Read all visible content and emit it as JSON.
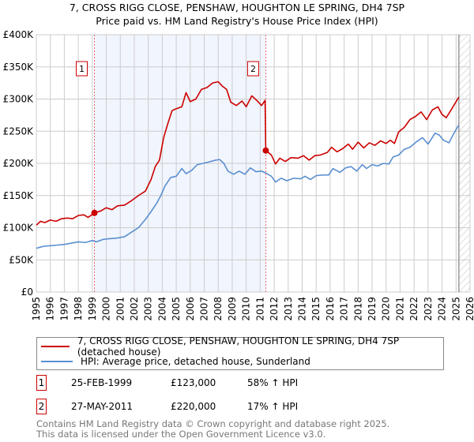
{
  "chart_data": {
    "type": "line",
    "title": "7, CROSS RIGG CLOSE, PENSHAW, HOUGHTON LE SPRING, DH4 7SP",
    "subtitle": "Price paid vs. HM Land Registry's House Price Index (HPI)",
    "xlim": [
      1995,
      2026
    ],
    "ylim": [
      0,
      400000
    ],
    "x_ticks": [
      "1995",
      "1996",
      "1997",
      "1998",
      "1999",
      "2000",
      "2001",
      "2002",
      "2003",
      "2004",
      "2005",
      "2006",
      "2007",
      "2008",
      "2009",
      "2010",
      "2011",
      "2012",
      "2013",
      "2014",
      "2015",
      "2016",
      "2017",
      "2018",
      "2019",
      "2020",
      "2021",
      "2022",
      "2023",
      "2024",
      "2025",
      "2026"
    ],
    "y_ticks": [
      {
        "v": 0,
        "label": "£0"
      },
      {
        "v": 50000,
        "label": "£50K"
      },
      {
        "v": 100000,
        "label": "£100K"
      },
      {
        "v": 150000,
        "label": "£150K"
      },
      {
        "v": 200000,
        "label": "£200K"
      },
      {
        "v": 250000,
        "label": "£250K"
      },
      {
        "v": 300000,
        "label": "£300K"
      },
      {
        "v": 350000,
        "label": "£350K"
      },
      {
        "v": 400000,
        "label": "£400K"
      }
    ],
    "grid": true,
    "shaded_ranges": [
      [
        1999.15,
        2011.4
      ]
    ],
    "forecast_hatch_from": 2025.2,
    "series": [
      {
        "name": "7, CROSS RIGG CLOSE, PENSHAW, HOUGHTON LE SPRING, DH4 7SP (detached house)",
        "color": "#cc0000",
        "points": [
          [
            1995,
            104000
          ],
          [
            1995.3,
            110000
          ],
          [
            1995.6,
            108000
          ],
          [
            1996,
            112000
          ],
          [
            1996.4,
            110000
          ],
          [
            1996.8,
            114000
          ],
          [
            1997.2,
            115000
          ],
          [
            1997.6,
            114000
          ],
          [
            1998,
            119000
          ],
          [
            1998.4,
            120000
          ],
          [
            1998.7,
            116000
          ],
          [
            1999.15,
            123000
          ],
          [
            1999.6,
            126000
          ],
          [
            2000,
            131000
          ],
          [
            2000.4,
            128000
          ],
          [
            2000.8,
            134000
          ],
          [
            2001.3,
            135000
          ],
          [
            2001.8,
            142000
          ],
          [
            2002.3,
            150000
          ],
          [
            2002.8,
            157000
          ],
          [
            2003.2,
            175000
          ],
          [
            2003.5,
            195000
          ],
          [
            2003.8,
            205000
          ],
          [
            2004.1,
            240000
          ],
          [
            2004.4,
            262000
          ],
          [
            2004.7,
            282000
          ],
          [
            2005,
            285000
          ],
          [
            2005.4,
            288000
          ],
          [
            2005.7,
            310000
          ],
          [
            2006,
            296000
          ],
          [
            2006.4,
            300000
          ],
          [
            2006.8,
            315000
          ],
          [
            2007.2,
            318000
          ],
          [
            2007.6,
            325000
          ],
          [
            2008,
            327000
          ],
          [
            2008.3,
            320000
          ],
          [
            2008.6,
            315000
          ],
          [
            2008.9,
            295000
          ],
          [
            2009.3,
            290000
          ],
          [
            2009.7,
            297000
          ],
          [
            2010,
            288000
          ],
          [
            2010.4,
            305000
          ],
          [
            2010.8,
            297000
          ],
          [
            2011.1,
            290000
          ],
          [
            2011.35,
            298000
          ],
          [
            2011.4,
            220000
          ],
          [
            2011.8,
            213000
          ],
          [
            2012.1,
            199000
          ],
          [
            2012.4,
            208000
          ],
          [
            2012.8,
            203000
          ],
          [
            2013.2,
            209000
          ],
          [
            2013.7,
            208000
          ],
          [
            2014.1,
            212000
          ],
          [
            2014.5,
            205000
          ],
          [
            2014.9,
            212000
          ],
          [
            2015.3,
            213000
          ],
          [
            2015.8,
            217000
          ],
          [
            2016.1,
            225000
          ],
          [
            2016.5,
            218000
          ],
          [
            2016.9,
            223000
          ],
          [
            2017.3,
            230000
          ],
          [
            2017.6,
            222000
          ],
          [
            2018,
            233000
          ],
          [
            2018.4,
            224000
          ],
          [
            2018.8,
            232000
          ],
          [
            2019.2,
            228000
          ],
          [
            2019.6,
            235000
          ],
          [
            2020,
            231000
          ],
          [
            2020.3,
            236000
          ],
          [
            2020.6,
            231000
          ],
          [
            2020.9,
            249000
          ],
          [
            2021.3,
            256000
          ],
          [
            2021.7,
            268000
          ],
          [
            2022.1,
            273000
          ],
          [
            2022.5,
            280000
          ],
          [
            2022.9,
            268000
          ],
          [
            2023.3,
            283000
          ],
          [
            2023.7,
            288000
          ],
          [
            2024,
            276000
          ],
          [
            2024.3,
            271000
          ],
          [
            2024.7,
            285000
          ],
          [
            2025.2,
            303000
          ]
        ]
      },
      {
        "name": "HPI: Average price, detached house, Sunderland",
        "color": "#5b8fd0",
        "points": [
          [
            1995,
            68000
          ],
          [
            1995.5,
            71000
          ],
          [
            1996,
            72000
          ],
          [
            1996.5,
            73000
          ],
          [
            1997,
            74000
          ],
          [
            1997.5,
            76000
          ],
          [
            1998,
            78000
          ],
          [
            1998.5,
            77000
          ],
          [
            1999,
            80000
          ],
          [
            1999.3,
            78000
          ],
          [
            1999.8,
            82000
          ],
          [
            2000.3,
            83000
          ],
          [
            2000.8,
            84000
          ],
          [
            2001.3,
            86000
          ],
          [
            2001.8,
            93000
          ],
          [
            2002.3,
            100000
          ],
          [
            2002.8,
            113000
          ],
          [
            2003.2,
            125000
          ],
          [
            2003.6,
            138000
          ],
          [
            2003.9,
            150000
          ],
          [
            2004.2,
            165000
          ],
          [
            2004.6,
            178000
          ],
          [
            2005,
            180000
          ],
          [
            2005.4,
            192000
          ],
          [
            2005.7,
            184000
          ],
          [
            2006.1,
            189000
          ],
          [
            2006.5,
            198000
          ],
          [
            2006.9,
            200000
          ],
          [
            2007.3,
            202000
          ],
          [
            2007.8,
            205000
          ],
          [
            2008.1,
            206000
          ],
          [
            2008.4,
            200000
          ],
          [
            2008.7,
            188000
          ],
          [
            2009.1,
            183000
          ],
          [
            2009.5,
            188000
          ],
          [
            2009.9,
            183000
          ],
          [
            2010.3,
            193000
          ],
          [
            2010.7,
            187000
          ],
          [
            2011.1,
            188000
          ],
          [
            2011.4,
            185000
          ],
          [
            2011.8,
            180000
          ],
          [
            2012.1,
            171000
          ],
          [
            2012.5,
            177000
          ],
          [
            2012.9,
            173000
          ],
          [
            2013.4,
            177000
          ],
          [
            2013.9,
            176000
          ],
          [
            2014.2,
            180000
          ],
          [
            2014.6,
            175000
          ],
          [
            2015,
            181000
          ],
          [
            2015.5,
            182000
          ],
          [
            2015.9,
            182000
          ],
          [
            2016.2,
            192000
          ],
          [
            2016.7,
            186000
          ],
          [
            2017.1,
            193000
          ],
          [
            2017.5,
            195000
          ],
          [
            2017.9,
            188000
          ],
          [
            2018.3,
            198000
          ],
          [
            2018.6,
            192000
          ],
          [
            2019,
            198000
          ],
          [
            2019.4,
            196000
          ],
          [
            2019.8,
            200000
          ],
          [
            2020.2,
            199000
          ],
          [
            2020.5,
            210000
          ],
          [
            2020.9,
            213000
          ],
          [
            2021.3,
            222000
          ],
          [
            2021.7,
            225000
          ],
          [
            2022.2,
            234000
          ],
          [
            2022.6,
            240000
          ],
          [
            2023,
            230000
          ],
          [
            2023.5,
            247000
          ],
          [
            2023.8,
            244000
          ],
          [
            2024.1,
            236000
          ],
          [
            2024.5,
            232000
          ],
          [
            2024.8,
            245000
          ],
          [
            2025.2,
            260000
          ]
        ]
      }
    ],
    "annotations": [
      {
        "label": "1",
        "x": 1999.15,
        "y": 123000
      },
      {
        "label": "2",
        "x": 2011.4,
        "y": 220000
      }
    ]
  },
  "legend": {
    "property": "7, CROSS RIGG CLOSE, PENSHAW, HOUGHTON LE SPRING, DH4 7SP (detached house)",
    "hpi": "HPI: Average price, detached house, Sunderland"
  },
  "sales": [
    {
      "num": "1",
      "date": "25-FEB-1999",
      "price": "£123,000",
      "hpi": "58% ↑ HPI"
    },
    {
      "num": "2",
      "date": "27-MAY-2011",
      "price": "£220,000",
      "hpi": "17% ↑ HPI"
    }
  ],
  "footer": {
    "line1": "Contains HM Land Registry data © Crown copyright and database right 2025.",
    "line2": "This data is licensed under the Open Government Licence v3.0."
  }
}
